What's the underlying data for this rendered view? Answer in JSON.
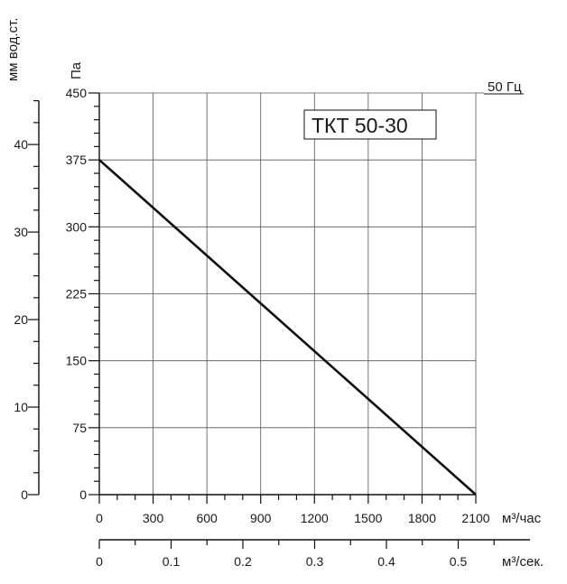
{
  "chart_data": {
    "type": "line",
    "model_label": "ТКТ 50-30",
    "frequency_label": "50 Гц",
    "y_left_unit": "Па",
    "y_outer_unit": "мм вод.ст.",
    "x_unit": "м³/час",
    "x2_unit": "м³/сек.",
    "ylim": [
      0,
      450
    ],
    "y_ticks": [
      "0",
      "75",
      "150",
      "225",
      "300",
      "375",
      "450"
    ],
    "y2_ticks": [
      "0",
      "10",
      "20",
      "30",
      "40"
    ],
    "xlim": [
      0,
      2100
    ],
    "x_ticks": [
      "0",
      "300",
      "600",
      "900",
      "1200",
      "1500",
      "1800",
      "2100"
    ],
    "x2_ticks": [
      "0",
      "0.1",
      "0.2",
      "0.3",
      "0.4",
      "0.5"
    ],
    "grid": true,
    "series": [
      {
        "x": [
          0,
          2100
        ],
        "y": [
          375,
          0
        ]
      }
    ]
  }
}
